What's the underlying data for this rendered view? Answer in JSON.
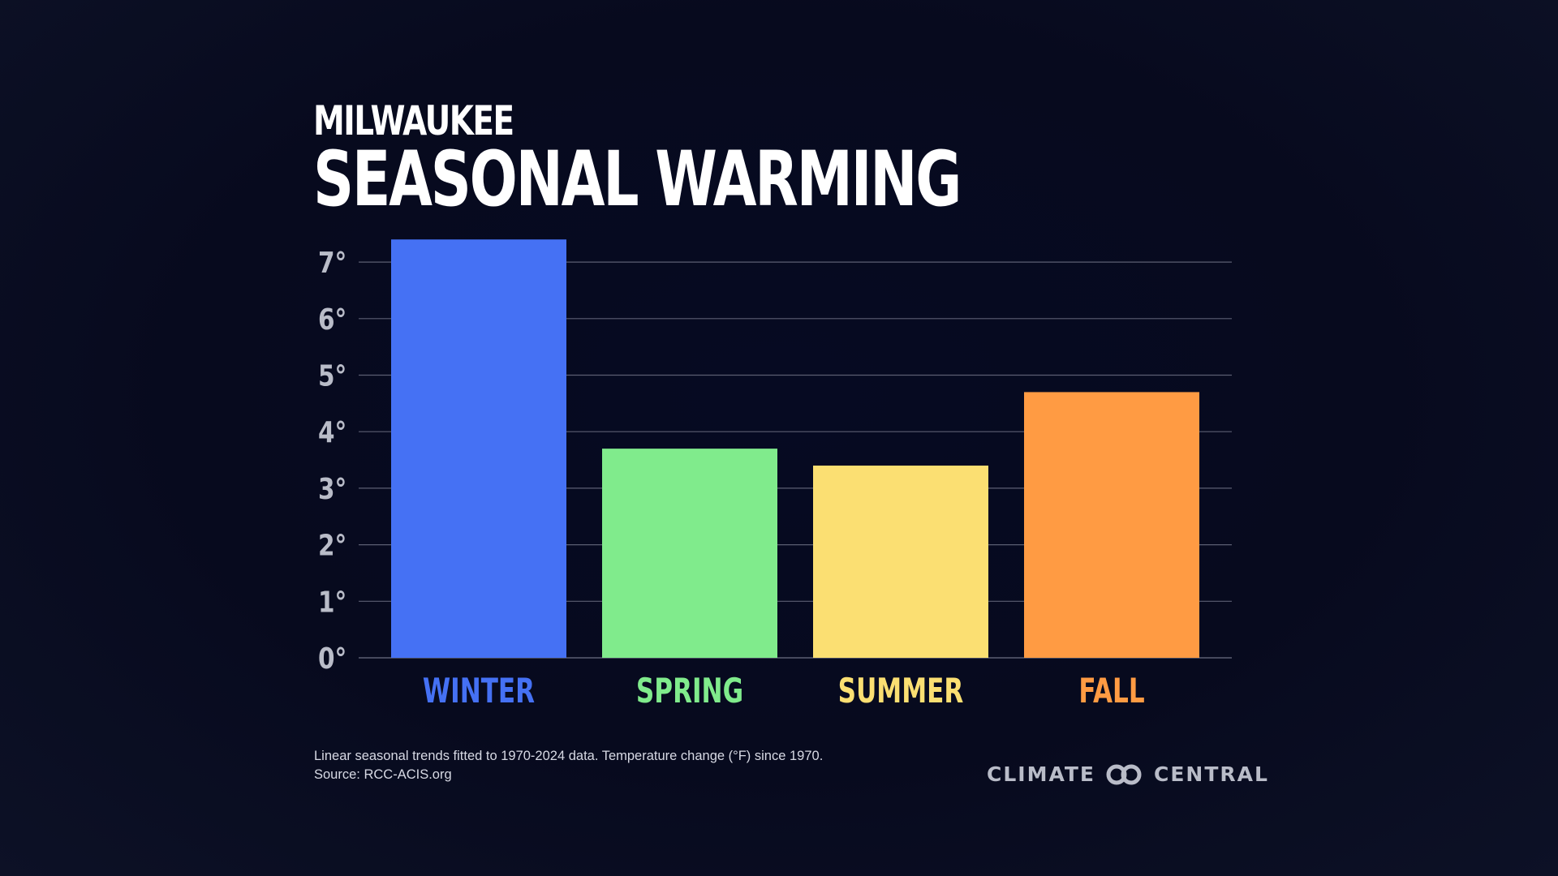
{
  "header": {
    "subtitle": "MILWAUKEE",
    "title": "SEASONAL WARMING"
  },
  "footnote": {
    "line1": "Linear seasonal trends fitted to 1970-2024 data. Temperature change (°F) since 1970.",
    "line2": "Source: RCC-ACIS.org"
  },
  "logo": {
    "left_text": "CLIMATE",
    "right_text": "CENTRAL",
    "icon": "climate-central-logo-icon"
  },
  "colors": {
    "background": "#070a1e",
    "gridline": "#5b5e72",
    "tick_label": "#b9bcc8"
  },
  "chart_data": {
    "type": "bar",
    "title": "SEASONAL WARMING",
    "subtitle": "MILWAUKEE",
    "xlabel": "",
    "ylabel": "",
    "categories": [
      "WINTER",
      "SPRING",
      "SUMMER",
      "FALL"
    ],
    "values": [
      7.4,
      3.7,
      3.4,
      4.7
    ],
    "colors": [
      "#4571f4",
      "#80eb8c",
      "#fbdf72",
      "#ff9b43"
    ],
    "ylim": [
      0,
      7
    ],
    "yticks": [
      0,
      1,
      2,
      3,
      4,
      5,
      6,
      7
    ],
    "ytick_labels": [
      "0°",
      "1°",
      "2°",
      "3°",
      "4°",
      "5°",
      "6°",
      "7°"
    ],
    "grid": true,
    "legend": "none"
  }
}
